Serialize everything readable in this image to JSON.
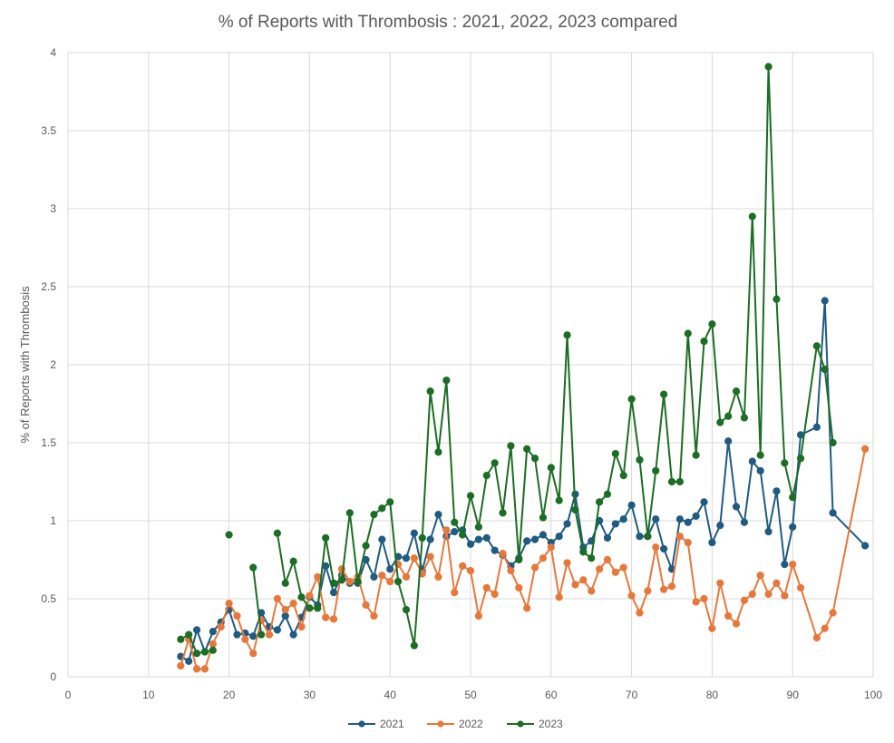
{
  "chart_data": {
    "type": "line",
    "title": "% of Reports with Thrombosis : 2021, 2022, 2023 compared",
    "xlabel": "",
    "ylabel": "% of Reports with Thrombosis",
    "xlim": [
      0,
      100
    ],
    "ylim": [
      0,
      4
    ],
    "x_ticks": [
      "0",
      "10",
      "20",
      "30",
      "40",
      "50",
      "60",
      "70",
      "80",
      "90",
      "100"
    ],
    "y_ticks": [
      "0",
      "0.5",
      "1",
      "1.5",
      "2",
      "2.5",
      "3",
      "3.5",
      "4"
    ],
    "grid": true,
    "legend_position": "bottom",
    "series": [
      {
        "name": "2021",
        "color": "#1f5b82",
        "points": [
          [
            14,
            0.13
          ],
          [
            15,
            0.1
          ],
          [
            16,
            0.3
          ],
          [
            17,
            0.16
          ],
          [
            18,
            0.29
          ],
          [
            19,
            0.35
          ],
          [
            20,
            0.43
          ],
          [
            21,
            0.27
          ],
          [
            22,
            0.28
          ],
          [
            23,
            0.26
          ],
          [
            24,
            0.41
          ],
          [
            25,
            0.32
          ],
          [
            26,
            0.3
          ],
          [
            27,
            0.39
          ],
          [
            28,
            0.27
          ],
          [
            29,
            0.38
          ],
          [
            30,
            0.51
          ],
          [
            31,
            0.46
          ],
          [
            32,
            0.71
          ],
          [
            33,
            0.54
          ],
          [
            34,
            0.65
          ],
          [
            35,
            0.6
          ],
          [
            36,
            0.6
          ],
          [
            37,
            0.75
          ],
          [
            38,
            0.64
          ],
          [
            39,
            0.88
          ],
          [
            40,
            0.69
          ],
          [
            41,
            0.77
          ],
          [
            42,
            0.76
          ],
          [
            43,
            0.92
          ],
          [
            44,
            0.68
          ],
          [
            45,
            0.88
          ],
          [
            46,
            1.04
          ],
          [
            47,
            0.9
          ],
          [
            48,
            0.93
          ],
          [
            49,
            0.94
          ],
          [
            50,
            0.85
          ],
          [
            51,
            0.88
          ],
          [
            52,
            0.89
          ],
          [
            53,
            0.81
          ],
          [
            54,
            0.78
          ],
          [
            55,
            0.71
          ],
          [
            56,
            0.76
          ],
          [
            57,
            0.87
          ],
          [
            58,
            0.88
          ],
          [
            59,
            0.91
          ],
          [
            60,
            0.86
          ],
          [
            61,
            0.9
          ],
          [
            62,
            0.98
          ],
          [
            63,
            1.17
          ],
          [
            64,
            0.83
          ],
          [
            65,
            0.87
          ],
          [
            66,
            1.0
          ],
          [
            67,
            0.89
          ],
          [
            68,
            0.98
          ],
          [
            69,
            1.01
          ],
          [
            70,
            1.1
          ],
          [
            71,
            0.9
          ],
          [
            72,
            0.9
          ],
          [
            73,
            1.01
          ],
          [
            74,
            0.82
          ],
          [
            75,
            0.69
          ],
          [
            76,
            1.01
          ],
          [
            77,
            0.99
          ],
          [
            78,
            1.03
          ],
          [
            79,
            1.12
          ],
          [
            80,
            0.86
          ],
          [
            81,
            0.97
          ],
          [
            82,
            1.51
          ],
          [
            83,
            1.09
          ],
          [
            84,
            0.99
          ],
          [
            85,
            1.38
          ],
          [
            86,
            1.32
          ],
          [
            87,
            0.93
          ],
          [
            88,
            1.19
          ],
          [
            89,
            0.72
          ],
          [
            90,
            0.96
          ],
          [
            91,
            1.55
          ],
          [
            93,
            1.6
          ],
          [
            94,
            2.41
          ],
          [
            95,
            1.05
          ],
          [
            99,
            0.84
          ]
        ]
      },
      {
        "name": "2022",
        "color": "#e8773a",
        "points": [
          [
            14,
            0.07
          ],
          [
            15,
            0.24
          ],
          [
            16,
            0.05
          ],
          [
            17,
            0.05
          ],
          [
            18,
            0.21
          ],
          [
            19,
            0.32
          ],
          [
            20,
            0.47
          ],
          [
            21,
            0.39
          ],
          [
            22,
            0.24
          ],
          [
            23,
            0.15
          ],
          [
            24,
            0.36
          ],
          [
            25,
            0.27
          ],
          [
            26,
            0.5
          ],
          [
            27,
            0.43
          ],
          [
            28,
            0.47
          ],
          [
            29,
            0.32
          ],
          [
            30,
            0.52
          ],
          [
            31,
            0.64
          ],
          [
            32,
            0.38
          ],
          [
            33,
            0.37
          ],
          [
            34,
            0.69
          ],
          [
            35,
            0.61
          ],
          [
            36,
            0.64
          ],
          [
            37,
            0.46
          ],
          [
            38,
            0.39
          ],
          [
            39,
            0.65
          ],
          [
            40,
            0.61
          ],
          [
            41,
            0.72
          ],
          [
            42,
            0.64
          ],
          [
            43,
            0.76
          ],
          [
            44,
            0.66
          ],
          [
            45,
            0.77
          ],
          [
            46,
            0.64
          ],
          [
            47,
            0.94
          ],
          [
            48,
            0.54
          ],
          [
            49,
            0.71
          ],
          [
            50,
            0.68
          ],
          [
            51,
            0.39
          ],
          [
            52,
            0.57
          ],
          [
            53,
            0.53
          ],
          [
            54,
            0.79
          ],
          [
            55,
            0.68
          ],
          [
            56,
            0.57
          ],
          [
            57,
            0.44
          ],
          [
            58,
            0.7
          ],
          [
            59,
            0.76
          ],
          [
            60,
            0.83
          ],
          [
            61,
            0.51
          ],
          [
            62,
            0.73
          ],
          [
            63,
            0.59
          ],
          [
            64,
            0.62
          ],
          [
            65,
            0.55
          ],
          [
            66,
            0.69
          ],
          [
            67,
            0.75
          ],
          [
            68,
            0.67
          ],
          [
            69,
            0.7
          ],
          [
            70,
            0.52
          ],
          [
            71,
            0.41
          ],
          [
            72,
            0.55
          ],
          [
            73,
            0.83
          ],
          [
            74,
            0.56
          ],
          [
            75,
            0.58
          ],
          [
            76,
            0.9
          ],
          [
            77,
            0.86
          ],
          [
            78,
            0.48
          ],
          [
            79,
            0.5
          ],
          [
            80,
            0.31
          ],
          [
            81,
            0.6
          ],
          [
            82,
            0.39
          ],
          [
            83,
            0.34
          ],
          [
            84,
            0.49
          ],
          [
            85,
            0.53
          ],
          [
            86,
            0.65
          ],
          [
            87,
            0.53
          ],
          [
            88,
            0.6
          ],
          [
            89,
            0.52
          ],
          [
            90,
            0.72
          ],
          [
            91,
            0.57
          ],
          [
            93,
            0.25
          ],
          [
            94,
            0.31
          ],
          [
            95,
            0.41
          ],
          [
            99,
            1.46
          ]
        ]
      },
      {
        "name": "2023",
        "color": "#1b6e23",
        "segments": [
          [
            [
              14,
              0.24
            ],
            [
              15,
              0.27
            ],
            [
              16,
              0.15
            ],
            [
              17,
              0.16
            ],
            [
              18,
              0.17
            ]
          ],
          [
            [
              20,
              0.91
            ]
          ],
          [
            [
              23,
              0.7
            ],
            [
              24,
              0.27
            ]
          ],
          [
            [
              26,
              0.92
            ],
            [
              27,
              0.6
            ],
            [
              28,
              0.74
            ],
            [
              29,
              0.51
            ],
            [
              30,
              0.44
            ],
            [
              31,
              0.44
            ],
            [
              32,
              0.89
            ],
            [
              33,
              0.6
            ],
            [
              34,
              0.62
            ],
            [
              35,
              1.05
            ],
            [
              36,
              0.61
            ],
            [
              37,
              0.84
            ],
            [
              38,
              1.04
            ],
            [
              39,
              1.08
            ],
            [
              40,
              1.12
            ],
            [
              41,
              0.61
            ],
            [
              42,
              0.43
            ],
            [
              43,
              0.2
            ],
            [
              44,
              0.89
            ],
            [
              45,
              1.83
            ],
            [
              46,
              1.44
            ],
            [
              47,
              1.9
            ],
            [
              48,
              0.99
            ],
            [
              49,
              0.91
            ],
            [
              50,
              1.16
            ],
            [
              51,
              0.96
            ],
            [
              52,
              1.29
            ],
            [
              53,
              1.37
            ],
            [
              54,
              1.05
            ],
            [
              55,
              1.48
            ],
            [
              56,
              0.75
            ],
            [
              57,
              1.46
            ],
            [
              58,
              1.4
            ],
            [
              59,
              1.02
            ],
            [
              60,
              1.34
            ],
            [
              61,
              1.13
            ],
            [
              62,
              2.19
            ],
            [
              63,
              1.07
            ],
            [
              64,
              0.8
            ],
            [
              65,
              0.76
            ],
            [
              66,
              1.12
            ],
            [
              67,
              1.17
            ],
            [
              68,
              1.43
            ],
            [
              69,
              1.29
            ],
            [
              70,
              1.78
            ],
            [
              71,
              1.39
            ],
            [
              72,
              0.9
            ],
            [
              73,
              1.32
            ],
            [
              74,
              1.81
            ],
            [
              75,
              1.25
            ],
            [
              76,
              1.25
            ],
            [
              77,
              2.2
            ],
            [
              78,
              1.42
            ],
            [
              79,
              2.15
            ],
            [
              80,
              2.26
            ],
            [
              81,
              1.63
            ],
            [
              82,
              1.67
            ],
            [
              83,
              1.83
            ],
            [
              84,
              1.66
            ],
            [
              85,
              2.95
            ],
            [
              86,
              1.42
            ],
            [
              87,
              3.91
            ],
            [
              88,
              2.42
            ],
            [
              89,
              1.37
            ],
            [
              90,
              1.15
            ],
            [
              91,
              1.4
            ],
            [
              93,
              2.12
            ],
            [
              94,
              1.97
            ],
            [
              95,
              1.5
            ]
          ]
        ]
      }
    ]
  }
}
